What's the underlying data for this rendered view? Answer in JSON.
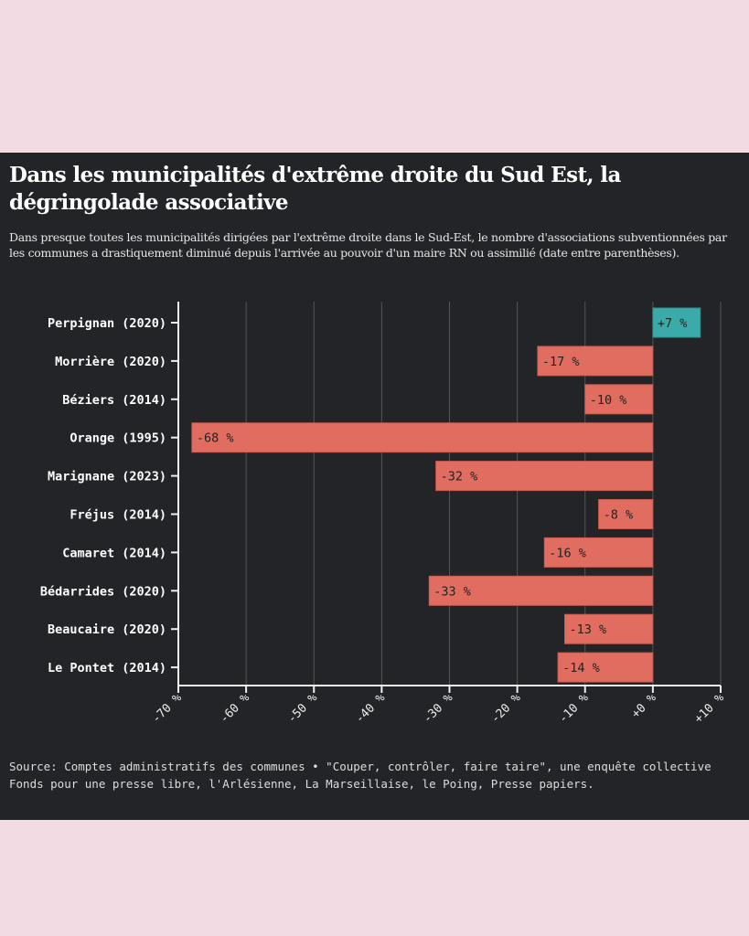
{
  "title": "Dans les municipalités d'extrême droite du Sud Est, la dégringolade associative",
  "subtitle": "Dans presque toutes les municipalités dirigées par l'extrême droite dans le Sud-Est, le nombre d'associations subventionnées par les communes a drastiquement diminué depuis l'arrivée au pouvoir d'un maire RN ou assimilié (date entre parenthèses).",
  "source": "Source: Comptes administratifs des communes • \"Couper, contrôler, faire taire\", une enquête collective Fonds pour une presse libre, l'Arlésienne, La Marseillaise, le Poing, Presse papiers.",
  "colors": {
    "negative": "#e06d60",
    "positive": "#3aaba8",
    "background": "#222427",
    "page": "#f2dbe2"
  },
  "chart_data": {
    "type": "bar",
    "orientation": "horizontal",
    "categories": [
      "Perpignan (2020)",
      "Morrière (2020)",
      "Béziers (2014)",
      "Orange (1995)",
      "Marignane (2023)",
      "Fréjus (2014)",
      "Camaret (2014)",
      "Bédarrides (2020)",
      "Beaucaire (2020)",
      "Le Pontet (2014)"
    ],
    "values": [
      7,
      -17,
      -10,
      -68,
      -32,
      -8,
      -16,
      -33,
      -13,
      -14
    ],
    "labels": [
      "+7 %",
      "-17 %",
      "-10 %",
      "-68 %",
      "-32 %",
      "-8 %",
      "-16 %",
      "-33 %",
      "-13 %",
      "-14 %"
    ],
    "xlim": [
      -70,
      10
    ],
    "xticks": [
      -70,
      -60,
      -50,
      -40,
      -30,
      -20,
      -10,
      0,
      10
    ],
    "xtick_labels": [
      "-70 %",
      "-60 %",
      "-50 %",
      "-40 %",
      "-30 %",
      "-20 %",
      "-10 %",
      "+0 %",
      "+10 %"
    ],
    "grid": true,
    "xlabel": "",
    "ylabel": ""
  }
}
